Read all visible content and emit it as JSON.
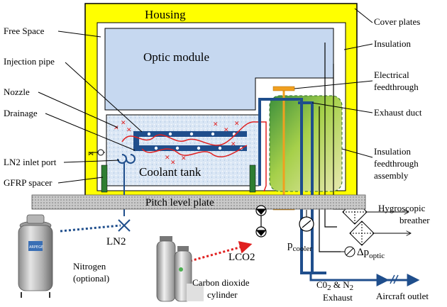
{
  "labels": {
    "housing": "Housing",
    "optic_module": "Optic module",
    "coolant_tank": "Coolant tank",
    "pitch_level_plate": "Pitch level plate",
    "free_space": "Free Space",
    "injection_pipe": "Injection pipe",
    "nozzle": "Nozzle",
    "drainage": "Drainage",
    "ln2_inlet_port": "LN2 inlet port",
    "gfrp_spacer": "GFRP spacer",
    "cover_plates": "Cover plates",
    "insulation": "Insulation",
    "electrical_feedthrough_1": "Electrical",
    "electrical_feedthrough_2": "feedthrough",
    "exhaust_duct": "Exhaust duct",
    "insulation_feedthrough_1": "Insulation",
    "insulation_feedthrough_2": "feedthrough",
    "insulation_feedthrough_3": "assembly",
    "hygroscopic_breather_1": "Hygroscopic",
    "hygroscopic_breather_2": "breather",
    "ln2": "LN2",
    "lco2": "LCO2",
    "p_cooler_main": "p",
    "p_cooler_sub": "cooler",
    "dp_optic_main": "Δp",
    "dp_optic_sub": "optic",
    "nitrogen_1": "Nitrogen",
    "nitrogen_2": "(optional)",
    "co2_cylinder_1": "Carbon dioxide",
    "co2_cylinder_2": "cylinder",
    "exhaust_gas_1": "C0",
    "exhaust_gas_2": " & N",
    "exhaust_gas_sub": "2",
    "exhaust_gas_3": "Exhaust",
    "aircraft_outlet": "Aircraft outlet",
    "dewar_brand": "ARPEGE"
  },
  "colors": {
    "housing_yellow": "#ffff00",
    "optic_blue": "#c6d8f0",
    "pipe_navy": "#1f4e8c",
    "coolant_red": "#e02020",
    "spacer_green": "#2e7d32",
    "plate_gray": "#bdbdbd"
  }
}
